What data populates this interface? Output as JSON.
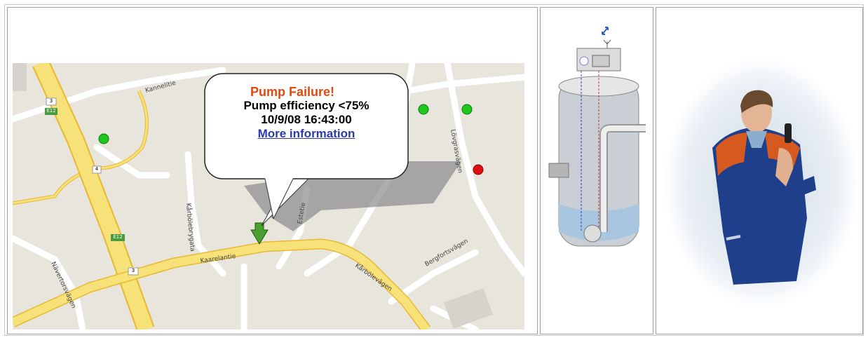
{
  "callout": {
    "title": "Pump Failure!",
    "detail": "Pump efficiency <75%",
    "time": "10/9/08 16:43:00",
    "link": "More information"
  },
  "map_labels": [
    "3",
    "E12",
    "4",
    "Kannelitie",
    "Kaarelantie",
    "Kårbölevägen",
    "Bergfortsvägen",
    "Lövgrasvägen",
    "Kårbölebrygata",
    "Estetie",
    "Nävertorsvägen"
  ]
}
